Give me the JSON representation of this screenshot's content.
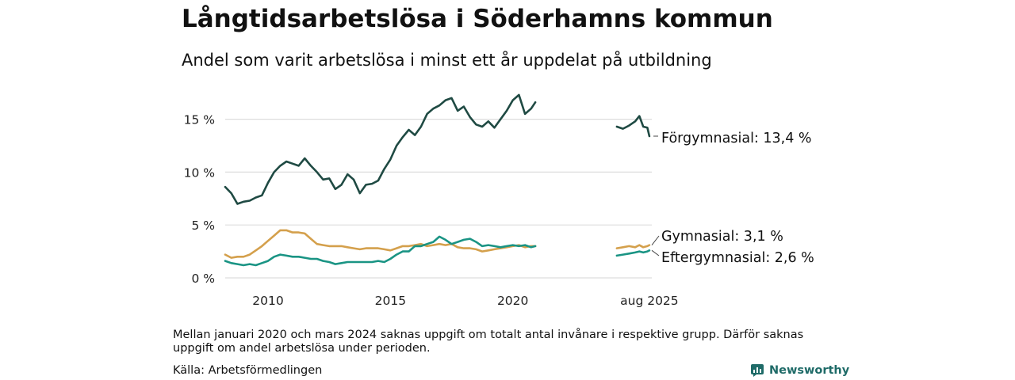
{
  "header": {
    "title": "Långtidsarbetslösa i Söderhamns kommun",
    "subtitle": "Andel som varit arbetslösa i minst ett år uppdelat på utbildning"
  },
  "footer": {
    "note": "Mellan januari 2020 och mars 2024 saknas uppgift om totalt antal invånare i respektive grupp. Därför saknas uppgift om andel arbetslösa under perioden.",
    "source": "Källa: Arbetsförmedlingen",
    "brand": "Newsworthy"
  },
  "colors": {
    "forgymnasial": "#1f4a43",
    "gymnasial": "#d4a04c",
    "eftergymnasial": "#1a9484",
    "grid": "#dddddd",
    "brand": "#1f6b68"
  },
  "chart_data": {
    "type": "line",
    "title": "Långtidsarbetslösa i Söderhamns kommun",
    "subtitle": "Andel som varit arbetslösa i minst ett år uppdelat på utbildning",
    "x_ticks": [
      {
        "x": 2010,
        "label": "2010"
      },
      {
        "x": 2015,
        "label": "2015"
      },
      {
        "x": 2020,
        "label": "2020"
      },
      {
        "x": 2025.58,
        "label": "aug 2025"
      }
    ],
    "y_ticks": [
      {
        "y": 0,
        "label": "0 %"
      },
      {
        "y": 5,
        "label": "5 %"
      },
      {
        "y": 10,
        "label": "10 %"
      },
      {
        "y": 15,
        "label": "15 %"
      }
    ],
    "xlim": [
      2008.25,
      2025.68
    ],
    "ylim": [
      0,
      18
    ],
    "grid": true,
    "legend": "end-of-line labels",
    "series": [
      {
        "key": "forgymnasial",
        "label": "Förgymnasial: 13,4 %",
        "segments": [
          [
            [
              2008.25,
              8.6
            ],
            [
              2008.5,
              8.0
            ],
            [
              2008.75,
              7.0
            ],
            [
              2009.0,
              7.2
            ],
            [
              2009.25,
              7.3
            ],
            [
              2009.5,
              7.6
            ],
            [
              2009.75,
              7.8
            ],
            [
              2010.0,
              9.0
            ],
            [
              2010.25,
              10.0
            ],
            [
              2010.5,
              10.6
            ],
            [
              2010.75,
              11.0
            ],
            [
              2011.0,
              10.8
            ],
            [
              2011.25,
              10.6
            ],
            [
              2011.5,
              11.3
            ],
            [
              2011.75,
              10.6
            ],
            [
              2012.0,
              10.0
            ],
            [
              2012.25,
              9.3
            ],
            [
              2012.5,
              9.4
            ],
            [
              2012.75,
              8.4
            ],
            [
              2013.0,
              8.8
            ],
            [
              2013.25,
              9.8
            ],
            [
              2013.5,
              9.3
            ],
            [
              2013.75,
              8.0
            ],
            [
              2014.0,
              8.8
            ],
            [
              2014.25,
              8.9
            ],
            [
              2014.5,
              9.2
            ],
            [
              2014.75,
              10.3
            ],
            [
              2015.0,
              11.2
            ],
            [
              2015.25,
              12.5
            ],
            [
              2015.5,
              13.3
            ],
            [
              2015.75,
              14.0
            ],
            [
              2016.0,
              13.5
            ],
            [
              2016.25,
              14.3
            ],
            [
              2016.5,
              15.5
            ],
            [
              2016.75,
              16.0
            ],
            [
              2017.0,
              16.3
            ],
            [
              2017.25,
              16.8
            ],
            [
              2017.5,
              17.0
            ],
            [
              2017.75,
              15.8
            ],
            [
              2018.0,
              16.2
            ],
            [
              2018.25,
              15.2
            ],
            [
              2018.5,
              14.5
            ],
            [
              2018.75,
              14.3
            ],
            [
              2019.0,
              14.8
            ],
            [
              2019.25,
              14.2
            ],
            [
              2019.5,
              15.0
            ],
            [
              2019.75,
              15.8
            ],
            [
              2020.0,
              16.8
            ],
            [
              2020.25,
              17.3
            ],
            [
              2020.5,
              15.5
            ],
            [
              2020.75,
              16.0
            ],
            [
              2020.92,
              16.6
            ]
          ],
          [
            [
              2024.25,
              14.3
            ],
            [
              2024.5,
              14.1
            ],
            [
              2024.75,
              14.4
            ],
            [
              2025.0,
              14.8
            ],
            [
              2025.17,
              15.3
            ],
            [
              2025.33,
              14.3
            ],
            [
              2025.5,
              14.2
            ],
            [
              2025.58,
              13.4
            ]
          ]
        ]
      },
      {
        "key": "gymnasial",
        "label": "Gymnasial:  3,1 %",
        "segments": [
          [
            [
              2008.25,
              2.2
            ],
            [
              2008.5,
              1.9
            ],
            [
              2008.75,
              2.0
            ],
            [
              2009.0,
              2.0
            ],
            [
              2009.25,
              2.2
            ],
            [
              2009.5,
              2.6
            ],
            [
              2009.75,
              3.0
            ],
            [
              2010.0,
              3.5
            ],
            [
              2010.25,
              4.0
            ],
            [
              2010.5,
              4.5
            ],
            [
              2010.75,
              4.5
            ],
            [
              2011.0,
              4.3
            ],
            [
              2011.25,
              4.3
            ],
            [
              2011.5,
              4.2
            ],
            [
              2011.75,
              3.7
            ],
            [
              2012.0,
              3.2
            ],
            [
              2012.25,
              3.1
            ],
            [
              2012.5,
              3.0
            ],
            [
              2012.75,
              3.0
            ],
            [
              2013.0,
              3.0
            ],
            [
              2013.25,
              2.9
            ],
            [
              2013.5,
              2.8
            ],
            [
              2013.75,
              2.7
            ],
            [
              2014.0,
              2.8
            ],
            [
              2014.25,
              2.8
            ],
            [
              2014.5,
              2.8
            ],
            [
              2014.75,
              2.7
            ],
            [
              2015.0,
              2.6
            ],
            [
              2015.25,
              2.8
            ],
            [
              2015.5,
              3.0
            ],
            [
              2015.75,
              3.0
            ],
            [
              2016.0,
              3.1
            ],
            [
              2016.25,
              3.2
            ],
            [
              2016.5,
              3.0
            ],
            [
              2016.75,
              3.1
            ],
            [
              2017.0,
              3.2
            ],
            [
              2017.25,
              3.1
            ],
            [
              2017.5,
              3.2
            ],
            [
              2017.75,
              2.9
            ],
            [
              2018.0,
              2.8
            ],
            [
              2018.25,
              2.8
            ],
            [
              2018.5,
              2.7
            ],
            [
              2018.75,
              2.5
            ],
            [
              2019.0,
              2.6
            ],
            [
              2019.25,
              2.7
            ],
            [
              2019.5,
              2.8
            ],
            [
              2019.75,
              2.9
            ],
            [
              2020.0,
              3.0
            ],
            [
              2020.25,
              3.1
            ],
            [
              2020.5,
              2.9
            ],
            [
              2020.75,
              3.0
            ],
            [
              2020.92,
              3.0
            ]
          ],
          [
            [
              2024.25,
              2.8
            ],
            [
              2024.5,
              2.9
            ],
            [
              2024.75,
              3.0
            ],
            [
              2025.0,
              2.9
            ],
            [
              2025.17,
              3.1
            ],
            [
              2025.33,
              2.9
            ],
            [
              2025.5,
              3.0
            ],
            [
              2025.58,
              3.1
            ]
          ]
        ]
      },
      {
        "key": "eftergymnasial",
        "label": "Eftergymnasial:  2,6 %",
        "segments": [
          [
            [
              2008.25,
              1.6
            ],
            [
              2008.5,
              1.4
            ],
            [
              2008.75,
              1.3
            ],
            [
              2009.0,
              1.2
            ],
            [
              2009.25,
              1.3
            ],
            [
              2009.5,
              1.2
            ],
            [
              2009.75,
              1.4
            ],
            [
              2010.0,
              1.6
            ],
            [
              2010.25,
              2.0
            ],
            [
              2010.5,
              2.2
            ],
            [
              2010.75,
              2.1
            ],
            [
              2011.0,
              2.0
            ],
            [
              2011.25,
              2.0
            ],
            [
              2011.5,
              1.9
            ],
            [
              2011.75,
              1.8
            ],
            [
              2012.0,
              1.8
            ],
            [
              2012.25,
              1.6
            ],
            [
              2012.5,
              1.5
            ],
            [
              2012.75,
              1.3
            ],
            [
              2013.0,
              1.4
            ],
            [
              2013.25,
              1.5
            ],
            [
              2013.5,
              1.5
            ],
            [
              2013.75,
              1.5
            ],
            [
              2014.0,
              1.5
            ],
            [
              2014.25,
              1.5
            ],
            [
              2014.5,
              1.6
            ],
            [
              2014.75,
              1.5
            ],
            [
              2015.0,
              1.8
            ],
            [
              2015.25,
              2.2
            ],
            [
              2015.5,
              2.5
            ],
            [
              2015.75,
              2.5
            ],
            [
              2016.0,
              3.0
            ],
            [
              2016.25,
              3.0
            ],
            [
              2016.5,
              3.2
            ],
            [
              2016.75,
              3.4
            ],
            [
              2017.0,
              3.9
            ],
            [
              2017.25,
              3.6
            ],
            [
              2017.5,
              3.2
            ],
            [
              2017.75,
              3.4
            ],
            [
              2018.0,
              3.6
            ],
            [
              2018.25,
              3.7
            ],
            [
              2018.5,
              3.4
            ],
            [
              2018.75,
              3.0
            ],
            [
              2019.0,
              3.1
            ],
            [
              2019.25,
              3.0
            ],
            [
              2019.5,
              2.9
            ],
            [
              2019.75,
              3.0
            ],
            [
              2020.0,
              3.1
            ],
            [
              2020.25,
              3.0
            ],
            [
              2020.5,
              3.1
            ],
            [
              2020.75,
              2.9
            ],
            [
              2020.92,
              3.0
            ]
          ],
          [
            [
              2024.25,
              2.1
            ],
            [
              2024.5,
              2.2
            ],
            [
              2024.75,
              2.3
            ],
            [
              2025.0,
              2.4
            ],
            [
              2025.17,
              2.5
            ],
            [
              2025.33,
              2.4
            ],
            [
              2025.5,
              2.5
            ],
            [
              2025.58,
              2.6
            ]
          ]
        ]
      }
    ]
  }
}
